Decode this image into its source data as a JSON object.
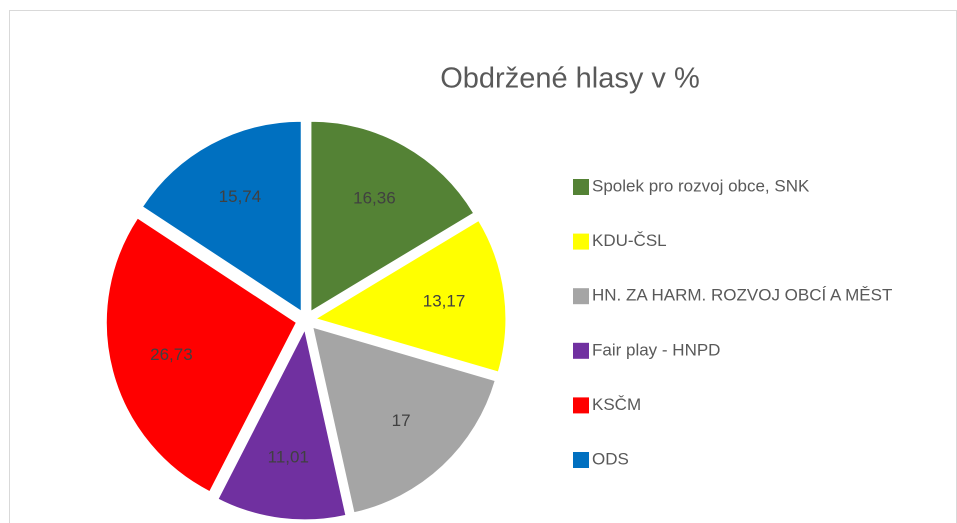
{
  "chart_data": {
    "type": "pie",
    "title": "Obdržené hlasy v %",
    "categories": [
      "Spolek pro rozvoj obce, SNK",
      "KDU-ČSL",
      "HN. ZA HARM. ROZVOJ OBCÍ A MĚST",
      "Fair play - HNPD",
      "KSČM",
      "ODS"
    ],
    "values": [
      16.36,
      13.17,
      17,
      11.01,
      26.73,
      15.74
    ],
    "value_labels": [
      "16,36",
      "13,17",
      "17",
      "11,01",
      "26,73",
      "15,74"
    ],
    "colors": [
      "#548235",
      "#ffff00",
      "#a5a5a5",
      "#7030a0",
      "#ff0000",
      "#0070c0"
    ],
    "legend": "right"
  }
}
